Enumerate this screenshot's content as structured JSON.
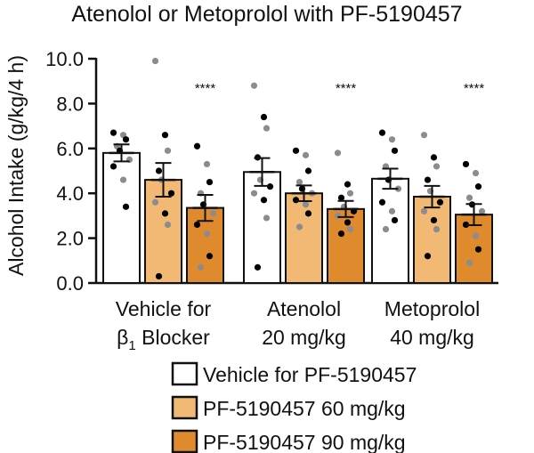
{
  "chart_data": {
    "type": "bar",
    "title": "Atenolol or Metoprolol with PF-5190457",
    "ylabel": "Alcohol Intake (g/kg/4 h)",
    "ylim": [
      0,
      10
    ],
    "yticks": [
      0.0,
      2.0,
      4.0,
      6.0,
      8.0,
      10.0
    ],
    "yticklabels": [
      "0.0",
      "2.0",
      "4.0",
      "6.0",
      "8.0",
      "10.0"
    ],
    "groups": [
      {
        "label_line1": "Vehicle for",
        "label_line2_prefix": "β",
        "label_line2_sub": "1",
        "label_line2_suffix": " Blocker",
        "significance": "****"
      },
      {
        "label_line1": "Atenolol",
        "label_line2_prefix": "20 mg/kg",
        "label_line2_sub": "",
        "label_line2_suffix": "",
        "significance": "****"
      },
      {
        "label_line1": "Metoprolol",
        "label_line2_prefix": "40 mg/kg",
        "label_line2_sub": "",
        "label_line2_suffix": "",
        "significance": "****"
      }
    ],
    "series": [
      {
        "name": "Vehicle for PF-5190457",
        "color": "#ffffff",
        "means": [
          5.8,
          4.95,
          4.65
        ],
        "sem": [
          0.38,
          0.62,
          0.45
        ],
        "points": [
          [
            6.7,
            6.6,
            6.4,
            6.1,
            5.9,
            5.5,
            5.2,
            4.6,
            3.4
          ],
          [
            8.8,
            7.4,
            6.9,
            5.6,
            4.6,
            4.3,
            4.0,
            3.7,
            2.9,
            0.7
          ],
          [
            6.7,
            6.4,
            5.9,
            5.2,
            4.6,
            4.2,
            3.6,
            3.2,
            2.8,
            2.4
          ]
        ]
      },
      {
        "name": "PF-5190457 60 mg/kg",
        "color": "#f2b974",
        "means": [
          4.6,
          4.0,
          3.85
        ],
        "sem": [
          0.75,
          0.35,
          0.48
        ],
        "points": [
          [
            9.9,
            6.6,
            5.9,
            5.0,
            4.6,
            4.0,
            3.6,
            3.1,
            2.6,
            0.3
          ],
          [
            5.9,
            5.7,
            5.0,
            4.5,
            4.2,
            4.0,
            3.7,
            3.5,
            3.1,
            2.5
          ],
          [
            6.6,
            5.6,
            5.2,
            4.6,
            4.1,
            3.6,
            3.2,
            2.8,
            2.4,
            1.2
          ]
        ]
      },
      {
        "name": "PF-5190457 90 mg/kg",
        "color": "#e08a2e",
        "means": [
          3.35,
          3.3,
          3.05
        ],
        "sem": [
          0.58,
          0.36,
          0.47
        ],
        "points": [
          [
            6.1,
            5.3,
            4.5,
            4.0,
            3.5,
            3.1,
            2.6,
            2.2,
            1.2,
            0.7
          ],
          [
            5.8,
            4.4,
            4.0,
            3.8,
            3.4,
            3.2,
            3.0,
            2.7,
            2.4,
            2.2
          ],
          [
            5.3,
            4.9,
            4.3,
            3.8,
            3.5,
            3.2,
            2.6,
            2.1,
            1.5,
            0.9
          ]
        ]
      }
    ],
    "point_colors": [
      "#000000",
      "#8c8c8c"
    ],
    "legend_position": "bottom-right"
  }
}
